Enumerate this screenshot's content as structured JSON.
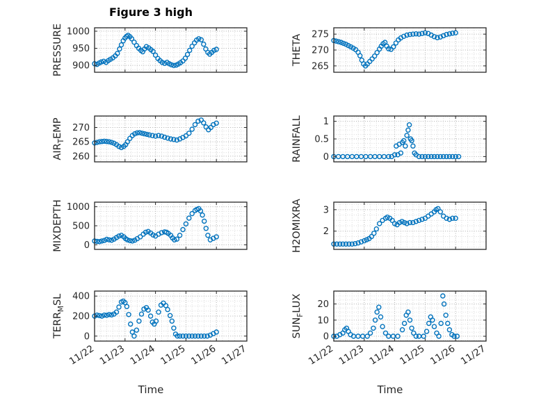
{
  "title": "Figure 3 high",
  "xlabel": "Time",
  "x_tick_labels": [
    "11/22",
    "11/23",
    "11/24",
    "11/25",
    "11/26",
    "11/27"
  ],
  "style": {
    "marker_color": "#0072BD",
    "axis_color": "#262626",
    "grid_color": "#aeaeae",
    "minor_grid_color": "#d9d9d9"
  },
  "chart_data": [
    {
      "id": "pressure",
      "type": "scatter",
      "ylabel": "PRESSURE",
      "ylabel_parts": [
        {
          "t": "PRESSURE"
        }
      ],
      "yticks": [
        900,
        950,
        1000
      ],
      "ylim": [
        880,
        1010
      ],
      "xlim_days": [
        0,
        5
      ],
      "xticklabels": false,
      "x": [
        0,
        0.08,
        0.15,
        0.22,
        0.3,
        0.38,
        0.45,
        0.52,
        0.6,
        0.68,
        0.75,
        0.82,
        0.88,
        0.94,
        1.0,
        1.05,
        1.1,
        1.16,
        1.22,
        1.3,
        1.38,
        1.45,
        1.52,
        1.58,
        1.64,
        1.7,
        1.78,
        1.85,
        1.92,
        2.0,
        2.08,
        2.15,
        2.22,
        2.3,
        2.38,
        2.45,
        2.52,
        2.6,
        2.68,
        2.75,
        2.82,
        2.9,
        2.98,
        3.05,
        3.12,
        3.2,
        3.28,
        3.35,
        3.42,
        3.5,
        3.58,
        3.65,
        3.72,
        3.78,
        3.85,
        3.92,
        4.0
      ],
      "y": [
        905,
        903,
        907,
        910,
        912,
        909,
        914,
        918,
        922,
        928,
        935,
        948,
        960,
        972,
        980,
        985,
        988,
        984,
        978,
        968,
        958,
        950,
        944,
        940,
        948,
        955,
        951,
        946,
        941,
        930,
        920,
        914,
        909,
        906,
        909,
        905,
        902,
        900,
        901,
        904,
        908,
        913,
        921,
        932,
        944,
        956,
        966,
        974,
        978,
        975,
        962,
        948,
        938,
        933,
        938,
        944,
        947
      ]
    },
    {
      "id": "theta",
      "type": "scatter",
      "ylabel": "THETA",
      "ylabel_parts": [
        {
          "t": "THETA"
        }
      ],
      "yticks": [
        265,
        270,
        275
      ],
      "ylim": [
        263,
        277
      ],
      "xlim_days": [
        0,
        5
      ],
      "xticklabels": false,
      "x": [
        0,
        0.08,
        0.16,
        0.24,
        0.32,
        0.4,
        0.48,
        0.56,
        0.64,
        0.72,
        0.8,
        0.86,
        0.92,
        0.98,
        1.04,
        1.1,
        1.18,
        1.26,
        1.34,
        1.42,
        1.5,
        1.56,
        1.62,
        1.68,
        1.74,
        1.8,
        1.88,
        1.96,
        2.04,
        2.12,
        2.2,
        2.3,
        2.4,
        2.5,
        2.6,
        2.7,
        2.8,
        2.9,
        3.0,
        3.1,
        3.2,
        3.3,
        3.4,
        3.5,
        3.6,
        3.7,
        3.8,
        3.9,
        4.0
      ],
      "y": [
        273,
        272.8,
        272.6,
        272.4,
        272.1,
        271.8,
        271.4,
        271,
        270.6,
        270.1,
        269.3,
        268.2,
        266.8,
        265.6,
        265,
        265.6,
        266.4,
        267.2,
        268.1,
        269.2,
        270.3,
        271.2,
        272,
        272.4,
        271.2,
        270.4,
        270.2,
        271,
        272.2,
        273.2,
        273.8,
        274.3,
        274.7,
        274.9,
        275,
        275.1,
        275,
        275.2,
        275.4,
        275.2,
        274.7,
        274.2,
        273.9,
        274.1,
        274.5,
        274.9,
        275.1,
        275.3,
        275.4
      ]
    },
    {
      "id": "air-temp",
      "type": "scatter",
      "ylabel": "AIR_T_EMP",
      "ylabel_parts": [
        {
          "t": "AIR"
        },
        {
          "t": "T",
          "sub": true
        },
        {
          "t": "EMP"
        }
      ],
      "yticks": [
        260,
        265,
        270
      ],
      "ylim": [
        258,
        274
      ],
      "xlim_days": [
        0,
        5
      ],
      "xticklabels": false,
      "x": [
        0,
        0.08,
        0.16,
        0.24,
        0.32,
        0.4,
        0.48,
        0.56,
        0.64,
        0.72,
        0.8,
        0.88,
        0.96,
        1.02,
        1.08,
        1.16,
        1.24,
        1.32,
        1.4,
        1.48,
        1.56,
        1.64,
        1.72,
        1.8,
        1.9,
        2.0,
        2.1,
        2.2,
        2.3,
        2.4,
        2.5,
        2.6,
        2.7,
        2.8,
        2.9,
        3.0,
        3.1,
        3.2,
        3.3,
        3.4,
        3.5,
        3.58,
        3.66,
        3.74,
        3.82,
        3.9,
        4.0
      ],
      "y": [
        264.6,
        264.8,
        265,
        265.1,
        265.2,
        265.1,
        265,
        264.8,
        264.5,
        264,
        263.4,
        263,
        263.4,
        264,
        265,
        266.2,
        267.2,
        267.8,
        268.1,
        268.2,
        268,
        267.8,
        267.6,
        267.4,
        267.2,
        267,
        267.2,
        267,
        266.6,
        266.3,
        266,
        265.8,
        265.6,
        266,
        266.5,
        267.1,
        268,
        269.4,
        271,
        272.2,
        272.6,
        271.6,
        270.2,
        269.2,
        270,
        271,
        271.5
      ]
    },
    {
      "id": "rainfall",
      "type": "scatter",
      "ylabel": "RAINFALL",
      "ylabel_parts": [
        {
          "t": "RAINFALL"
        }
      ],
      "yticks": [
        0,
        0.5,
        1
      ],
      "ylim": [
        -0.15,
        1.15
      ],
      "xlim_days": [
        0,
        5
      ],
      "xticklabels": false,
      "x": [
        0,
        0.15,
        0.3,
        0.45,
        0.6,
        0.75,
        0.9,
        1.05,
        1.2,
        1.35,
        1.5,
        1.65,
        1.8,
        1.9,
        2.0,
        2.05,
        2.1,
        2.15,
        2.2,
        2.25,
        2.3,
        2.35,
        2.4,
        2.44,
        2.48,
        2.52,
        2.56,
        2.6,
        2.65,
        2.7,
        2.8,
        2.9,
        3.0,
        3.1,
        3.2,
        3.3,
        3.4,
        3.5,
        3.6,
        3.7,
        3.8,
        3.9,
        4.0,
        4.1
      ],
      "y": [
        0,
        0,
        0,
        0,
        0,
        0,
        0,
        0,
        0,
        0,
        0,
        0,
        0,
        0,
        0.05,
        0.3,
        0.05,
        0.35,
        0.1,
        0.4,
        0.45,
        0.3,
        0.6,
        0.75,
        0.9,
        0.5,
        0.45,
        0.3,
        0.1,
        0.05,
        0,
        0,
        0,
        0,
        0,
        0,
        0,
        0,
        0,
        0,
        0,
        0,
        0,
        0
      ]
    },
    {
      "id": "mixdepth",
      "type": "scatter",
      "ylabel": "MIXDEPTH",
      "ylabel_parts": [
        {
          "t": "MIXDEPTH"
        }
      ],
      "yticks": [
        0,
        500,
        1000
      ],
      "ylim": [
        -120,
        1120
      ],
      "xlim_days": [
        0,
        5
      ],
      "xticklabels": false,
      "x": [
        0,
        0.08,
        0.16,
        0.24,
        0.32,
        0.4,
        0.48,
        0.56,
        0.64,
        0.72,
        0.8,
        0.88,
        0.96,
        1.02,
        1.08,
        1.16,
        1.24,
        1.32,
        1.4,
        1.5,
        1.6,
        1.68,
        1.76,
        1.84,
        1.92,
        2.0,
        2.1,
        2.2,
        2.3,
        2.36,
        2.42,
        2.5,
        2.56,
        2.62,
        2.7,
        2.8,
        2.9,
        3.0,
        3.1,
        3.2,
        3.3,
        3.36,
        3.42,
        3.48,
        3.54,
        3.6,
        3.66,
        3.72,
        3.8,
        3.9,
        4.0
      ],
      "y": [
        100,
        90,
        85,
        100,
        115,
        145,
        130,
        120,
        150,
        190,
        230,
        250,
        210,
        160,
        130,
        110,
        100,
        120,
        160,
        210,
        280,
        330,
        350,
        310,
        260,
        230,
        280,
        320,
        340,
        330,
        300,
        250,
        180,
        130,
        150,
        250,
        400,
        550,
        700,
        820,
        900,
        930,
        950,
        890,
        780,
        620,
        430,
        250,
        130,
        170,
        210
      ]
    },
    {
      "id": "h2omixra",
      "type": "scatter",
      "ylabel": "H2OMIXRA",
      "ylabel_parts": [
        {
          "t": "H2OMIXRA"
        }
      ],
      "yticks": [
        2,
        3
      ],
      "ylim": [
        1.15,
        3.35
      ],
      "xlim_days": [
        0,
        5
      ],
      "xticklabels": false,
      "x": [
        0,
        0.1,
        0.2,
        0.3,
        0.4,
        0.5,
        0.6,
        0.7,
        0.8,
        0.9,
        1.0,
        1.08,
        1.16,
        1.24,
        1.32,
        1.4,
        1.5,
        1.6,
        1.7,
        1.76,
        1.84,
        1.92,
        2.0,
        2.08,
        2.16,
        2.24,
        2.32,
        2.4,
        2.5,
        2.6,
        2.7,
        2.8,
        2.9,
        3.0,
        3.1,
        3.2,
        3.3,
        3.36,
        3.42,
        3.5,
        3.6,
        3.7,
        3.8,
        3.9,
        4.0
      ],
      "y": [
        1.4,
        1.4,
        1.4,
        1.4,
        1.4,
        1.4,
        1.4,
        1.42,
        1.45,
        1.5,
        1.55,
        1.6,
        1.65,
        1.75,
        1.9,
        2.1,
        2.35,
        2.5,
        2.6,
        2.65,
        2.6,
        2.5,
        2.35,
        2.3,
        2.4,
        2.45,
        2.4,
        2.35,
        2.4,
        2.4,
        2.45,
        2.5,
        2.55,
        2.6,
        2.7,
        2.8,
        2.9,
        3.0,
        3.05,
        2.9,
        2.7,
        2.6,
        2.55,
        2.6,
        2.6
      ]
    },
    {
      "id": "terr-msl",
      "type": "scatter",
      "ylabel": "TERR_M_SL",
      "ylabel_parts": [
        {
          "t": "TERR"
        },
        {
          "t": "M",
          "sub": true
        },
        {
          "t": "SL"
        }
      ],
      "yticks": [
        0,
        200,
        400
      ],
      "ylim": [
        -50,
        450
      ],
      "xlim_days": [
        0,
        5
      ],
      "xticklabels": true,
      "x": [
        0,
        0.08,
        0.16,
        0.24,
        0.32,
        0.4,
        0.48,
        0.56,
        0.64,
        0.72,
        0.8,
        0.88,
        0.94,
        1.0,
        1.06,
        1.12,
        1.18,
        1.24,
        1.3,
        1.38,
        1.46,
        1.54,
        1.62,
        1.7,
        1.76,
        1.84,
        1.9,
        1.96,
        2.02,
        2.1,
        2.18,
        2.26,
        2.34,
        2.4,
        2.48,
        2.54,
        2.6,
        2.66,
        2.72,
        2.8,
        2.9,
        3.0,
        3.1,
        3.2,
        3.3,
        3.4,
        3.5,
        3.6,
        3.7,
        3.8,
        3.9,
        4.0
      ],
      "y": [
        200,
        210,
        205,
        200,
        210,
        208,
        215,
        212,
        220,
        240,
        290,
        340,
        350,
        335,
        295,
        215,
        120,
        40,
        0,
        60,
        150,
        220,
        270,
        285,
        260,
        200,
        140,
        120,
        150,
        240,
        310,
        330,
        305,
        265,
        205,
        150,
        80,
        20,
        0,
        0,
        0,
        0,
        0,
        0,
        0,
        0,
        0,
        0,
        0,
        10,
        25,
        40
      ]
    },
    {
      "id": "sun-flux",
      "type": "scatter",
      "ylabel": "SUN_F_LUX",
      "ylabel_parts": [
        {
          "t": "SUN"
        },
        {
          "t": "F",
          "sub": true
        },
        {
          "t": "LUX"
        }
      ],
      "yticks": [
        0,
        10,
        20
      ],
      "ylim": [
        -3,
        28
      ],
      "xlim_days": [
        0,
        5
      ],
      "xticklabels": true,
      "x": [
        0,
        0.1,
        0.2,
        0.3,
        0.36,
        0.42,
        0.48,
        0.55,
        0.65,
        0.8,
        0.95,
        1.1,
        1.2,
        1.3,
        1.36,
        1.42,
        1.48,
        1.54,
        1.6,
        1.7,
        1.8,
        1.95,
        2.1,
        2.25,
        2.32,
        2.38,
        2.44,
        2.5,
        2.56,
        2.62,
        2.7,
        2.8,
        2.95,
        3.05,
        3.12,
        3.18,
        3.24,
        3.3,
        3.38,
        3.45,
        3.52,
        3.58,
        3.62,
        3.68,
        3.74,
        3.8,
        3.88,
        3.95,
        4.05
      ],
      "y": [
        0,
        0,
        1,
        2,
        4,
        5,
        3,
        1,
        0,
        0,
        0,
        0,
        2,
        5,
        10,
        15,
        18,
        12,
        6,
        2,
        0,
        0,
        0,
        4,
        8,
        13,
        15,
        10,
        5,
        2,
        0,
        0,
        0,
        3,
        8,
        12,
        10,
        6,
        2,
        0,
        8,
        25,
        20,
        13,
        8,
        4,
        1,
        0,
        0
      ]
    }
  ]
}
